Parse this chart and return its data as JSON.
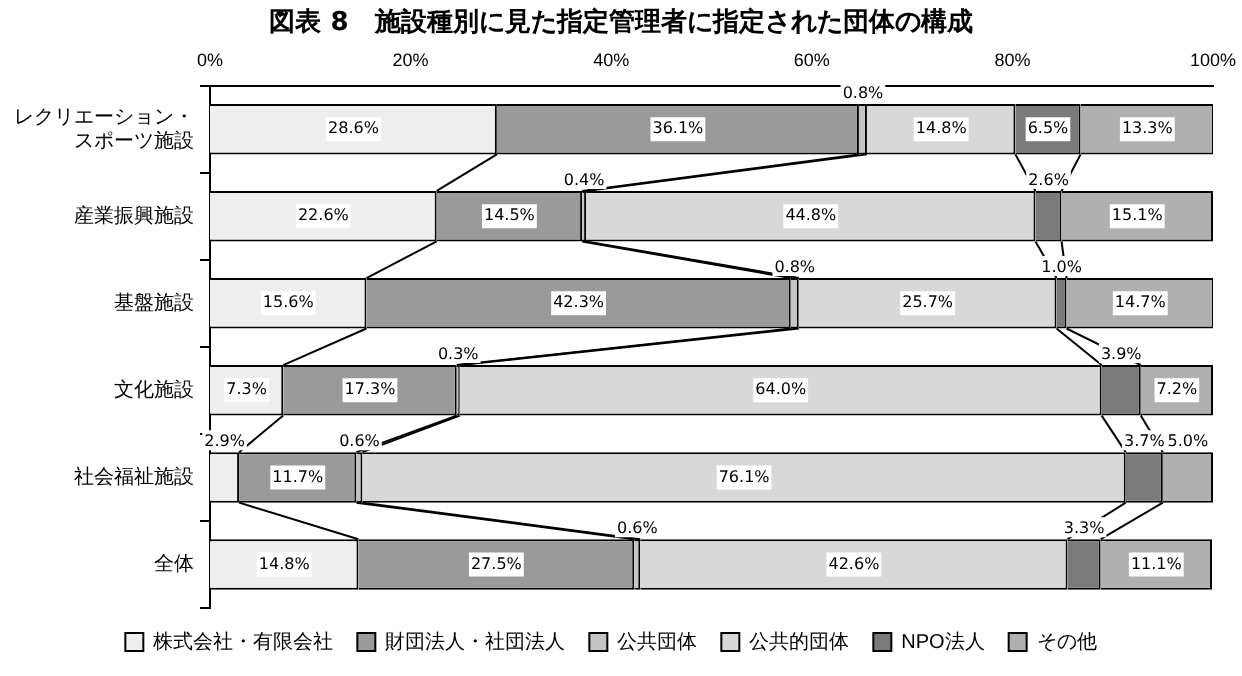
{
  "chart_data": {
    "type": "bar",
    "orientation": "horizontal",
    "stacked": true,
    "title": "図表 8　施設種別に見た指定管理者に指定された団体の構成",
    "categories": [
      "レクリエーション・スポーツ施設",
      "産業振興施設",
      "基盤施設",
      "文化施設",
      "社会福祉施設",
      "全体"
    ],
    "xlim": [
      0,
      100
    ],
    "xticks": [
      {
        "value": 0,
        "label": "0%"
      },
      {
        "value": 20,
        "label": "20%"
      },
      {
        "value": 40,
        "label": "40%"
      },
      {
        "value": 60,
        "label": "60%"
      },
      {
        "value": 80,
        "label": "80%"
      },
      {
        "value": 100,
        "label": "100%"
      }
    ],
    "grid": false,
    "legend": "bottom",
    "series": [
      {
        "name": "株式会社・有限会社",
        "color": "#eeeeee",
        "values": [
          28.6,
          22.6,
          15.6,
          7.3,
          2.9,
          14.8
        ],
        "value_labels": [
          "28.6%",
          "22.6%",
          "15.6%",
          "7.3%",
          "2.9%",
          "14.8%"
        ]
      },
      {
        "name": "財団法人・社団法人",
        "color": "#9a9a9a",
        "values": [
          36.1,
          14.5,
          42.3,
          17.3,
          11.7,
          27.5
        ],
        "value_labels": [
          "36.1%",
          "14.5%",
          "42.3%",
          "17.3%",
          "11.7%",
          "27.5%"
        ]
      },
      {
        "name": "公共団体",
        "color": "#c4c4c4",
        "values": [
          0.8,
          0.4,
          0.8,
          0.3,
          0.6,
          0.6
        ],
        "value_labels": [
          "0.8%",
          "0.4%",
          "0.8%",
          "0.3%",
          "0.6%",
          "0.6%"
        ]
      },
      {
        "name": "公共的団体",
        "color": "#d8d8d8",
        "values": [
          14.8,
          44.8,
          25.7,
          64.0,
          76.1,
          42.6
        ],
        "value_labels": [
          "14.8%",
          "44.8%",
          "25.7%",
          "64.0%",
          "76.1%",
          "42.6%"
        ]
      },
      {
        "name": "NPO法人",
        "color": "#7a7a7a",
        "values": [
          6.5,
          2.6,
          1.0,
          3.9,
          3.7,
          3.3
        ],
        "value_labels": [
          "6.5%",
          "2.6%",
          "1.0%",
          "3.9%",
          "3.7%",
          "3.3%"
        ]
      },
      {
        "name": "その他",
        "color": "#b0b0b0",
        "values": [
          13.3,
          15.1,
          14.7,
          7.2,
          5.0,
          11.1
        ],
        "value_labels": [
          "13.3%",
          "15.1%",
          "14.7%",
          "7.2%",
          "5.0%",
          "11.1%"
        ]
      }
    ]
  }
}
